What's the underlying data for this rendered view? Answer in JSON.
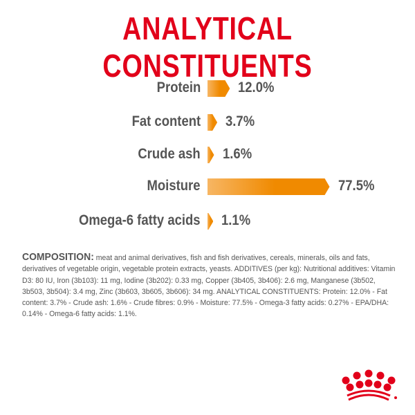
{
  "title": "ANALYTICAL CONSTITUENTS",
  "colors": {
    "title": "#e2001a",
    "bar": "#f08a00",
    "text": "#555555",
    "logo": "#e2001a"
  },
  "chart_data": {
    "type": "bar",
    "orientation": "horizontal",
    "categories": [
      "Protein",
      "Fat content",
      "Crude ash",
      "Moisture",
      "Omega-6 fatty acids"
    ],
    "values": [
      12.0,
      3.7,
      1.6,
      77.5,
      1.1
    ],
    "value_labels": [
      "12.0%",
      "3.7%",
      "1.6%",
      "77.5%",
      "1.1%"
    ],
    "unit": "%"
  },
  "composition": {
    "heading": "COMPOSITION:",
    "text": "meat and animal derivatives, fish and fish derivatives, cereals, minerals, oils and fats, derivatives of vegetable origin, vegetable protein extracts, yeasts. ADDITIVES (per kg): Nutritional additives: Vitamin D3: 80 IU, Iron (3b103): 11 mg, Iodine (3b202): 0.33 mg, Copper (3b405, 3b406): 2.6 mg, Manganese (3b502, 3b503, 3b504): 3.4 mg, Zinc (3b603, 3b605, 3b606): 34 mg. ANALYTICAL CONSTITUENTS: Protein: 12.0% - Fat content: 3.7% - Crude ash: 1.6% - Crude fibres: 0.9% - Moisture: 77.5% - Omega-3 fatty acids: 0.27% - EPA/DHA: 0.14% - Omega-6 fatty acids: 1.1%."
  },
  "logo": {
    "icon": "royal-canin-crown-icon"
  }
}
